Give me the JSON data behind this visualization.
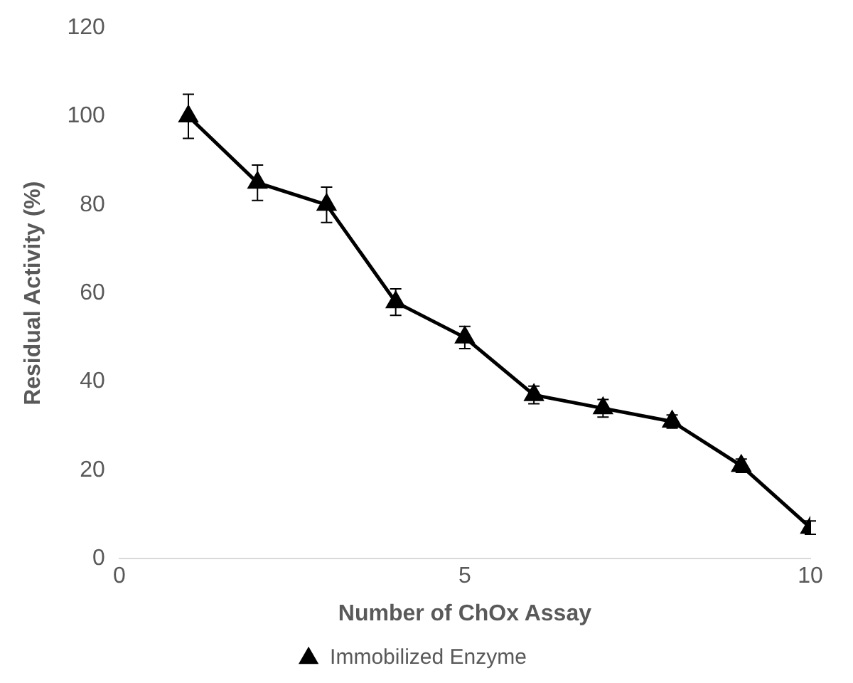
{
  "chart_data": {
    "type": "line",
    "xlabel": "Number of ChOx Assay",
    "ylabel": "Residual Activity (%)",
    "x": [
      1,
      2,
      3,
      4,
      5,
      6,
      7,
      8,
      9,
      10
    ],
    "series": [
      {
        "name": "Immobilized Enzyme",
        "color": "#000000",
        "values": [
          100,
          85,
          80,
          58,
          50,
          37,
          34,
          31,
          21,
          7
        ],
        "errors": [
          5,
          4,
          4,
          3,
          2.5,
          2,
          2,
          1.5,
          1.5,
          1.5
        ]
      }
    ],
    "xlim": [
      0,
      10
    ],
    "xticks": [
      0,
      5,
      10
    ],
    "ylim": [
      0,
      120
    ],
    "yticks": [
      0,
      20,
      40,
      60,
      80,
      100,
      120
    ],
    "grid": false,
    "legend": "bottom",
    "marker": "triangle",
    "line_style": "solid"
  }
}
